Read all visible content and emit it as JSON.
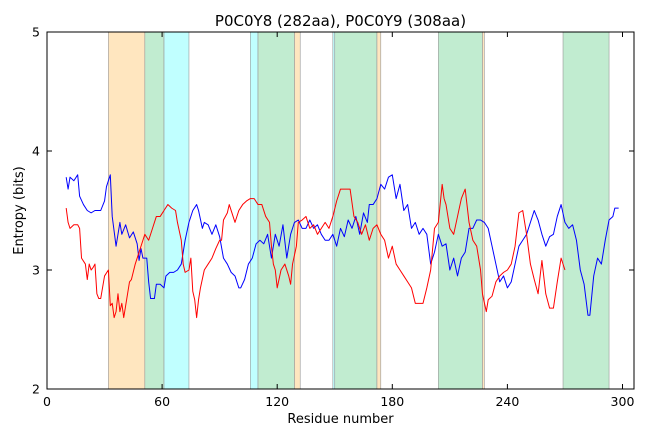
{
  "chart_data": {
    "type": "line",
    "title": "P0C0Y8 (282aa), P0C0Y9 (308aa)",
    "xlabel": "Residue number",
    "ylabel": "Entropy (bits)",
    "xlim": [
      0,
      306
    ],
    "ylim": [
      2,
      5
    ],
    "xticks": [
      0,
      60,
      120,
      180,
      240,
      300
    ],
    "yticks": [
      2,
      3,
      4,
      5
    ],
    "grid": false,
    "regions": [
      {
        "start": 32,
        "end": 51,
        "color": "#ffe6bf"
      },
      {
        "start": 51,
        "end": 61,
        "color": "#c1ecd0"
      },
      {
        "start": 61,
        "end": 74,
        "color": "#c0ffff"
      },
      {
        "start": 106,
        "end": 110,
        "color": "#c0ffff"
      },
      {
        "start": 110,
        "end": 129,
        "color": "#c1ecd0"
      },
      {
        "start": 129,
        "end": 132,
        "color": "#ffe6bf"
      },
      {
        "start": 149,
        "end": 150,
        "color": "#c0ffff"
      },
      {
        "start": 150,
        "end": 172,
        "color": "#c1ecd0"
      },
      {
        "start": 172,
        "end": 174,
        "color": "#ffe6bf"
      },
      {
        "start": 204,
        "end": 227,
        "color": "#c1ecd0"
      },
      {
        "start": 227,
        "end": 228,
        "color": "#ffe6bf"
      },
      {
        "start": 269,
        "end": 293,
        "color": "#c1ecd0"
      }
    ],
    "series": [
      {
        "color": "#0000ff",
        "points": [
          [
            10,
            3.78
          ],
          [
            11,
            3.68
          ],
          [
            12,
            3.78
          ],
          [
            14,
            3.75
          ],
          [
            16,
            3.8
          ],
          [
            17,
            3.62
          ],
          [
            19,
            3.55
          ],
          [
            21,
            3.5
          ],
          [
            23,
            3.48
          ],
          [
            25,
            3.5
          ],
          [
            28,
            3.5
          ],
          [
            30,
            3.58
          ],
          [
            31,
            3.7
          ],
          [
            33,
            3.8
          ],
          [
            34,
            3.45
          ],
          [
            36,
            3.2
          ],
          [
            37,
            3.3
          ],
          [
            38,
            3.4
          ],
          [
            39,
            3.3
          ],
          [
            41,
            3.38
          ],
          [
            43,
            3.27
          ],
          [
            45,
            3.32
          ],
          [
            47,
            3.22
          ],
          [
            48,
            3.08
          ],
          [
            49,
            3.18
          ],
          [
            50,
            3.1
          ],
          [
            52,
            3.1
          ],
          [
            53,
            2.9
          ],
          [
            54,
            2.76
          ],
          [
            56,
            2.76
          ],
          [
            57,
            2.88
          ],
          [
            59,
            2.88
          ],
          [
            61,
            2.85
          ],
          [
            62,
            2.95
          ],
          [
            64,
            2.98
          ],
          [
            66,
            2.98
          ],
          [
            68,
            3.0
          ],
          [
            70,
            3.05
          ],
          [
            72,
            3.25
          ],
          [
            74,
            3.4
          ],
          [
            76,
            3.5
          ],
          [
            78,
            3.55
          ],
          [
            79,
            3.5
          ],
          [
            81,
            3.35
          ],
          [
            82,
            3.4
          ],
          [
            84,
            3.38
          ],
          [
            86,
            3.3
          ],
          [
            88,
            3.38
          ],
          [
            90,
            3.28
          ],
          [
            92,
            3.1
          ],
          [
            94,
            3.05
          ],
          [
            96,
            2.98
          ],
          [
            98,
            2.95
          ],
          [
            100,
            2.85
          ],
          [
            101,
            2.85
          ],
          [
            103,
            2.92
          ],
          [
            105,
            3.05
          ],
          [
            107,
            3.1
          ],
          [
            109,
            3.22
          ],
          [
            111,
            3.25
          ],
          [
            113,
            3.22
          ],
          [
            115,
            3.3
          ],
          [
            117,
            3.1
          ],
          [
            119,
            3.3
          ],
          [
            121,
            3.2
          ],
          [
            123,
            3.38
          ],
          [
            125,
            3.1
          ],
          [
            127,
            3.3
          ],
          [
            129,
            3.4
          ],
          [
            131,
            3.42
          ],
          [
            133,
            3.35
          ],
          [
            135,
            3.35
          ],
          [
            137,
            3.42
          ],
          [
            139,
            3.35
          ],
          [
            141,
            3.38
          ],
          [
            143,
            3.3
          ],
          [
            145,
            3.25
          ],
          [
            147,
            3.25
          ],
          [
            149,
            3.3
          ],
          [
            151,
            3.2
          ],
          [
            153,
            3.35
          ],
          [
            155,
            3.28
          ],
          [
            157,
            3.42
          ],
          [
            159,
            3.35
          ],
          [
            161,
            3.45
          ],
          [
            163,
            3.3
          ],
          [
            165,
            3.48
          ],
          [
            167,
            3.4
          ],
          [
            168,
            3.55
          ],
          [
            170,
            3.55
          ],
          [
            172,
            3.6
          ],
          [
            174,
            3.72
          ],
          [
            176,
            3.68
          ],
          [
            178,
            3.78
          ],
          [
            180,
            3.8
          ],
          [
            182,
            3.6
          ],
          [
            184,
            3.72
          ],
          [
            186,
            3.5
          ],
          [
            188,
            3.55
          ],
          [
            190,
            3.35
          ],
          [
            192,
            3.4
          ],
          [
            194,
            3.3
          ],
          [
            196,
            3.35
          ],
          [
            198,
            3.3
          ],
          [
            200,
            3.05
          ],
          [
            202,
            3.15
          ],
          [
            204,
            3.3
          ],
          [
            206,
            3.2
          ],
          [
            208,
            3.22
          ],
          [
            210,
            3.0
          ],
          [
            212,
            3.1
          ],
          [
            214,
            2.95
          ],
          [
            216,
            3.1
          ],
          [
            218,
            3.15
          ],
          [
            220,
            3.35
          ],
          [
            222,
            3.35
          ],
          [
            224,
            3.42
          ],
          [
            226,
            3.42
          ],
          [
            228,
            3.4
          ],
          [
            230,
            3.35
          ],
          [
            232,
            3.2
          ],
          [
            234,
            3.05
          ],
          [
            236,
            2.9
          ],
          [
            238,
            2.95
          ],
          [
            240,
            2.85
          ],
          [
            242,
            2.9
          ],
          [
            244,
            3.05
          ],
          [
            246,
            3.2
          ],
          [
            248,
            3.25
          ],
          [
            250,
            3.3
          ],
          [
            252,
            3.4
          ],
          [
            254,
            3.5
          ],
          [
            256,
            3.42
          ],
          [
            258,
            3.3
          ],
          [
            260,
            3.2
          ],
          [
            262,
            3.28
          ],
          [
            264,
            3.3
          ],
          [
            266,
            3.45
          ],
          [
            268,
            3.55
          ],
          [
            270,
            3.4
          ],
          [
            272,
            3.35
          ],
          [
            274,
            3.38
          ],
          [
            276,
            3.25
          ],
          [
            278,
            3.0
          ],
          [
            280,
            2.88
          ],
          [
            282,
            2.62
          ],
          [
            283,
            2.62
          ],
          [
            285,
            2.95
          ],
          [
            287,
            3.1
          ],
          [
            289,
            3.05
          ],
          [
            291,
            3.25
          ],
          [
            293,
            3.42
          ],
          [
            295,
            3.45
          ],
          [
            296,
            3.52
          ],
          [
            298,
            3.52
          ]
        ]
      },
      {
        "color": "#ff0000",
        "points": [
          [
            10,
            3.52
          ],
          [
            11,
            3.4
          ],
          [
            12,
            3.35
          ],
          [
            14,
            3.38
          ],
          [
            16,
            3.38
          ],
          [
            17,
            3.35
          ],
          [
            18,
            3.1
          ],
          [
            20,
            3.05
          ],
          [
            21,
            2.92
          ],
          [
            22,
            3.05
          ],
          [
            23,
            3.0
          ],
          [
            24,
            3.02
          ],
          [
            25,
            3.05
          ],
          [
            26,
            2.8
          ],
          [
            27,
            2.76
          ],
          [
            28,
            2.76
          ],
          [
            30,
            2.95
          ],
          [
            32,
            3.0
          ],
          [
            33,
            2.7
          ],
          [
            34,
            2.72
          ],
          [
            35,
            2.6
          ],
          [
            36,
            2.65
          ],
          [
            37,
            2.8
          ],
          [
            38,
            2.65
          ],
          [
            39,
            2.72
          ],
          [
            40,
            2.6
          ],
          [
            42,
            2.8
          ],
          [
            43,
            2.9
          ],
          [
            44,
            2.92
          ],
          [
            46,
            3.05
          ],
          [
            48,
            3.15
          ],
          [
            50,
            3.25
          ],
          [
            51,
            3.3
          ],
          [
            53,
            3.25
          ],
          [
            55,
            3.35
          ],
          [
            57,
            3.45
          ],
          [
            59,
            3.45
          ],
          [
            61,
            3.5
          ],
          [
            63,
            3.55
          ],
          [
            65,
            3.52
          ],
          [
            67,
            3.5
          ],
          [
            68,
            3.4
          ],
          [
            70,
            3.25
          ],
          [
            71,
            3.05
          ],
          [
            72,
            2.98
          ],
          [
            74,
            3.0
          ],
          [
            75,
            3.1
          ],
          [
            76,
            2.82
          ],
          [
            77,
            2.75
          ],
          [
            78,
            2.6
          ],
          [
            79,
            2.75
          ],
          [
            80,
            2.85
          ],
          [
            82,
            3.0
          ],
          [
            84,
            3.05
          ],
          [
            86,
            3.1
          ],
          [
            88,
            3.18
          ],
          [
            90,
            3.25
          ],
          [
            91,
            3.25
          ],
          [
            92,
            3.42
          ],
          [
            94,
            3.48
          ],
          [
            95,
            3.55
          ],
          [
            97,
            3.45
          ],
          [
            98,
            3.4
          ],
          [
            100,
            3.5
          ],
          [
            102,
            3.55
          ],
          [
            104,
            3.58
          ],
          [
            106,
            3.6
          ],
          [
            108,
            3.6
          ],
          [
            110,
            3.55
          ],
          [
            112,
            3.55
          ],
          [
            114,
            3.45
          ],
          [
            116,
            3.4
          ],
          [
            117,
            3.2
          ],
          [
            118,
            3.05
          ],
          [
            119,
            3.0
          ],
          [
            120,
            2.85
          ],
          [
            122,
            3.0
          ],
          [
            124,
            3.05
          ],
          [
            126,
            2.95
          ],
          [
            127,
            2.88
          ],
          [
            128,
            3.05
          ],
          [
            130,
            3.2
          ],
          [
            131,
            3.4
          ],
          [
            133,
            3.42
          ],
          [
            135,
            3.45
          ],
          [
            137,
            3.35
          ],
          [
            139,
            3.38
          ],
          [
            141,
            3.3
          ],
          [
            143,
            3.35
          ],
          [
            145,
            3.4
          ],
          [
            147,
            3.35
          ],
          [
            149,
            3.45
          ],
          [
            151,
            3.58
          ],
          [
            153,
            3.68
          ],
          [
            156,
            3.68
          ],
          [
            158,
            3.68
          ],
          [
            160,
            3.45
          ],
          [
            162,
            3.4
          ],
          [
            164,
            3.3
          ],
          [
            166,
            3.38
          ],
          [
            168,
            3.25
          ],
          [
            170,
            3.35
          ],
          [
            172,
            3.38
          ],
          [
            174,
            3.3
          ],
          [
            176,
            3.25
          ],
          [
            178,
            3.1
          ],
          [
            180,
            3.2
          ],
          [
            182,
            3.05
          ],
          [
            184,
            3.0
          ],
          [
            186,
            2.95
          ],
          [
            188,
            2.9
          ],
          [
            190,
            2.85
          ],
          [
            192,
            2.72
          ],
          [
            194,
            2.72
          ],
          [
            196,
            2.72
          ],
          [
            198,
            2.85
          ],
          [
            200,
            3.0
          ],
          [
            202,
            3.35
          ],
          [
            204,
            3.4
          ],
          [
            206,
            3.72
          ],
          [
            207,
            3.6
          ],
          [
            208,
            3.55
          ],
          [
            210,
            3.35
          ],
          [
            212,
            3.3
          ],
          [
            214,
            3.45
          ],
          [
            216,
            3.6
          ],
          [
            218,
            3.68
          ],
          [
            220,
            3.4
          ],
          [
            222,
            3.25
          ],
          [
            224,
            3.2
          ],
          [
            226,
            3.0
          ],
          [
            227,
            2.8
          ],
          [
            229,
            2.65
          ],
          [
            230,
            2.75
          ],
          [
            232,
            2.78
          ],
          [
            234,
            2.9
          ],
          [
            236,
            2.95
          ],
          [
            238,
            2.98
          ],
          [
            240,
            3.0
          ],
          [
            242,
            3.05
          ],
          [
            244,
            3.2
          ],
          [
            246,
            3.48
          ],
          [
            248,
            3.5
          ],
          [
            250,
            3.3
          ],
          [
            252,
            3.05
          ],
          [
            254,
            2.92
          ],
          [
            256,
            2.8
          ],
          [
            258,
            3.08
          ],
          [
            260,
            2.8
          ],
          [
            262,
            2.68
          ],
          [
            264,
            2.68
          ],
          [
            266,
            2.9
          ],
          [
            268,
            3.1
          ],
          [
            270,
            3.0
          ]
        ]
      }
    ]
  }
}
